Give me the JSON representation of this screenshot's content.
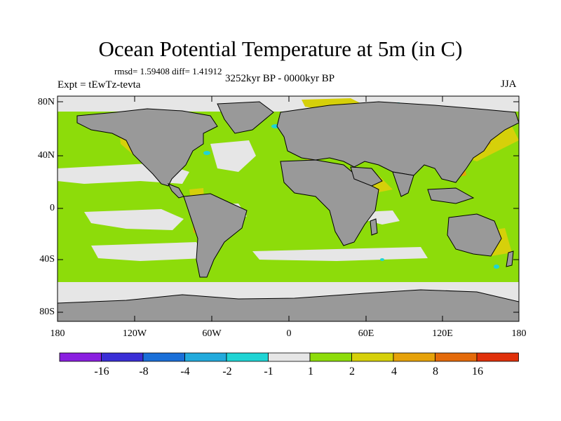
{
  "title": "Ocean Potential Temperature at 5m (in C)",
  "stats": "rmsd= 1.59408 diff= 1.41912",
  "experiment": "Expt = tEwTz-tevta",
  "period": "3252kyr BP - 0000kyr BP",
  "season": "JJA",
  "map": {
    "lat_labels": [
      "80N",
      "40N",
      "0",
      "40S",
      "80S"
    ],
    "lon_labels": [
      "180",
      "120W",
      "60W",
      "0",
      "60E",
      "120E",
      "180"
    ],
    "land_color": "#999999",
    "coast_color": "#000000"
  },
  "colorbar": {
    "labels": [
      "-16",
      "-8",
      "-4",
      "-2",
      "-1",
      "1",
      "2",
      "4",
      "8",
      "16"
    ],
    "colors": [
      "#8a1fe0",
      "#3a2ed6",
      "#1a6fd8",
      "#22aadc",
      "#1fd4d4",
      "#e6e6e6",
      "#8ddc0a",
      "#d6d00a",
      "#e6a20a",
      "#e46a0a",
      "#e0300a"
    ]
  }
}
